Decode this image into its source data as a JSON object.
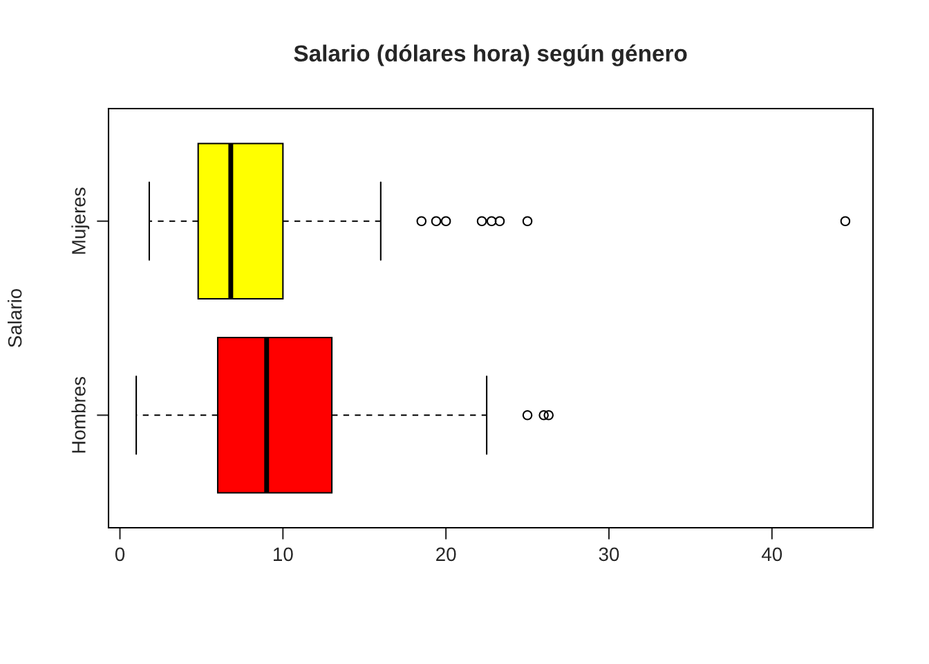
{
  "chart_data": {
    "type": "box",
    "orientation": "horizontal",
    "title": "Salario (dólares hora) según género",
    "ylabel": "Salario",
    "categories": [
      "Mujeres",
      "Hombres"
    ],
    "colors": [
      "#ffff00",
      "#ff0000"
    ],
    "boxes": [
      {
        "low": 1.8,
        "q1": 4.8,
        "median": 6.8,
        "q3": 10.0,
        "high": 16.0,
        "outliers": [
          18.5,
          19.4,
          20.0,
          22.2,
          22.8,
          23.3,
          25.0,
          44.5
        ]
      },
      {
        "low": 1.0,
        "q1": 6.0,
        "median": 9.0,
        "q3": 13.0,
        "high": 22.5,
        "outliers": [
          25.0,
          26.0,
          26.3
        ]
      }
    ],
    "xlim": [
      -0.7,
      46.2
    ],
    "xticks": [
      0,
      10,
      20,
      30,
      40
    ]
  }
}
